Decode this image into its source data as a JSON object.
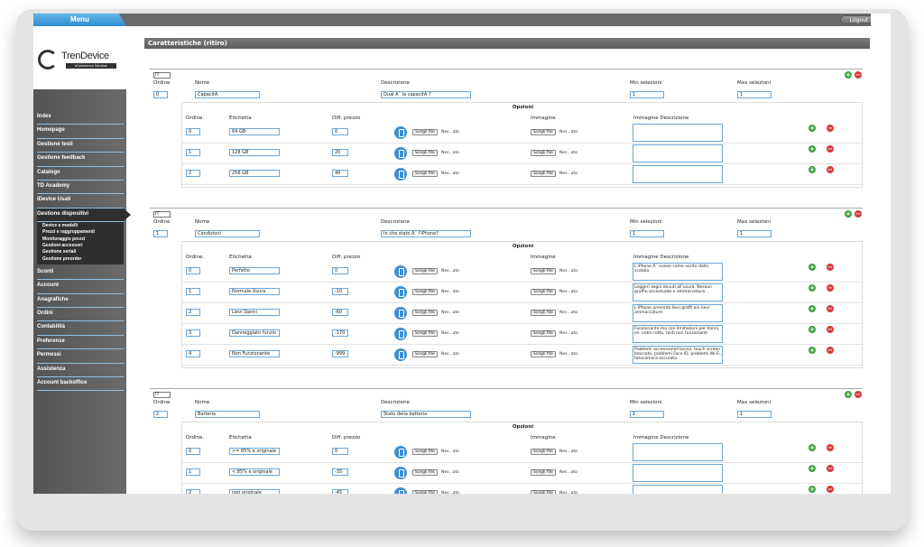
{
  "menu_label": "Menu",
  "logout_label": "Logout",
  "logo": {
    "name": "TrenDevice",
    "tagline": "eCommerce Solution"
  },
  "sidebar": {
    "items": [
      "Index",
      "Homepage",
      "Gestione testi",
      "Gestione feedback",
      "Catalogo",
      "TD Academy",
      "iDevice Usati",
      "Gestione dispositivi"
    ],
    "subitems": [
      "Device e modelli",
      "Prezzi e raggruppamenti",
      "Monitoraggio prezzi",
      "Gestioni accessori",
      "Gestione seriali",
      "Gestione preorder"
    ],
    "items_after": [
      "Sconti",
      "Account",
      "Anagrafiche",
      "Ordini",
      "Contabilità",
      "Preferenze",
      "Permessi",
      "Assistenza",
      "Account backoffice"
    ]
  },
  "page_title": "Caratteristiche (ritiro)",
  "labels": {
    "ordine": "Ordine",
    "nome": "Nome",
    "descrizione": "Descrizione",
    "min": "Min selezioni",
    "max": "Max selezioni",
    "opzioni": "Opzioni",
    "opt_ordine": "Ordine.",
    "etichetta": "Etichetta",
    "diff": "Diff. prezzo",
    "immagine": "Immagine",
    "img_desc": "Immagine Descrizione",
    "choose_file": "Scegli file",
    "no_file": "Nes...ato",
    "lang": "IT"
  },
  "blocks": [
    {
      "ordine": "0",
      "nome": "CapacitÃ",
      "descrizione": "Qual Ã¨ la capacitÃ ?",
      "min": "1",
      "max": "1",
      "options": [
        {
          "ordine": "0",
          "etichetta": "64 GB",
          "diff": "0",
          "img_desc": ""
        },
        {
          "ordine": "1",
          "etichetta": "128 GB",
          "diff": "20",
          "img_desc": ""
        },
        {
          "ordine": "2",
          "etichetta": "256 GB",
          "diff": "40",
          "img_desc": ""
        }
      ]
    },
    {
      "ordine": "1",
      "nome": "Condizioni",
      "descrizione": "In che stato Ã¨ l'iPhone?",
      "min": "1",
      "max": "1",
      "options": [
        {
          "ordine": "0",
          "etichetta": "Perfetto",
          "diff": "0",
          "img_desc": "L'iPhone Ã¨ nuovo come uscito dalla scatola."
        },
        {
          "ordine": "1",
          "etichetta": "Normale Usura",
          "diff": "-10",
          "img_desc": "Leggeri segni dovuti all'usura. Nessun graffio accentuato o ammaccatura."
        },
        {
          "ordine": "2",
          "etichetta": "Lievi Danni",
          "diff": "-60",
          "img_desc": "L'iPhone presenta lievi graffi e/o lievi ammaccature."
        },
        {
          "ordine": "3",
          "etichetta": "Danneggiato funzio",
          "diff": "-170",
          "img_desc": "Funzionante ma con limitazioni per danni, es: vetro rotto, tasti non funzionanti"
        },
        {
          "ordine": "4",
          "etichetta": "Non Funzionante",
          "diff": "-999",
          "img_desc": "Problemi accensione/riavvio, touch screen bloccato, problemi Face ID, problemi Wi-Fi, fotocamera oscurata."
        }
      ]
    },
    {
      "ordine": "2",
      "nome": "Batteria",
      "descrizione": "Stato della batteria",
      "min": "1",
      "max": "1",
      "options": [
        {
          "ordine": "0",
          "etichetta": ">= 85% e originale",
          "diff": "0",
          "img_desc": ""
        },
        {
          "ordine": "1",
          "etichetta": "< 85% e originale",
          "diff": "-35",
          "img_desc": ""
        },
        {
          "ordine": "2",
          "etichetta": "non originale",
          "diff": "-45",
          "img_desc": ""
        }
      ]
    }
  ]
}
